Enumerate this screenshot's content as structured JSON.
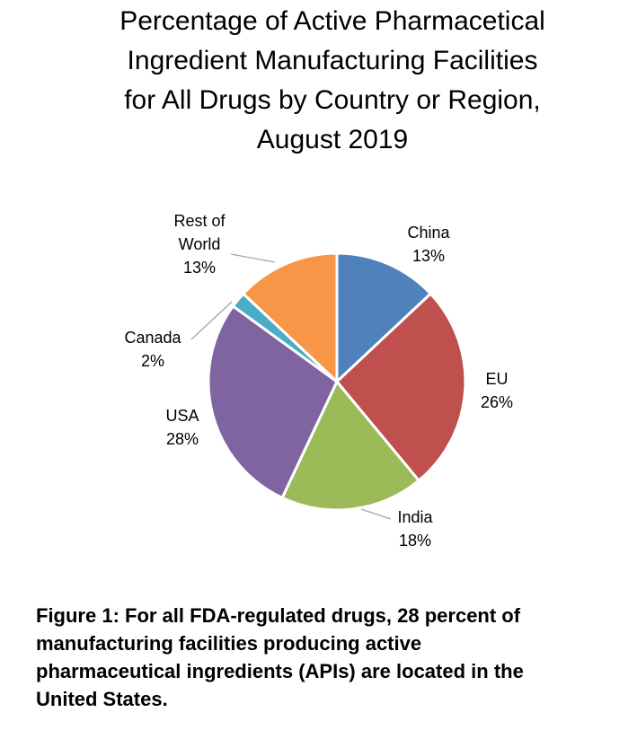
{
  "chart_data": {
    "type": "pie",
    "title_lines": [
      "Percentage of Active Pharmacetical",
      "Ingredient Manufacturing Facilities",
      "for All Drugs by Country or Region,",
      "August 2019"
    ],
    "slices": [
      {
        "name": "China",
        "value": 13,
        "pct_label": "13%",
        "label_lines": [
          "China"
        ],
        "color": "#4F81BD"
      },
      {
        "name": "EU",
        "value": 26,
        "pct_label": "26%",
        "label_lines": [
          "EU"
        ],
        "color": "#C0504D"
      },
      {
        "name": "India",
        "value": 18,
        "pct_label": "18%",
        "label_lines": [
          "India"
        ],
        "color": "#9BBB59"
      },
      {
        "name": "USA",
        "value": 28,
        "pct_label": "28%",
        "label_lines": [
          "USA"
        ],
        "color": "#8064A2"
      },
      {
        "name": "Canada",
        "value": 2,
        "pct_label": "2%",
        "label_lines": [
          "Canada"
        ],
        "color": "#4BACC6"
      },
      {
        "name": "Rest of World",
        "value": 13,
        "pct_label": "13%",
        "label_lines": [
          "Rest of",
          "World"
        ],
        "color": "#F79646"
      }
    ]
  },
  "caption": {
    "lines": [
      "Figure 1:  For all FDA-regulated drugs, 28 percent of",
      "manufacturing facilities producing active",
      "pharmaceutical  ingredients (APIs) are located in the",
      "United States."
    ]
  }
}
